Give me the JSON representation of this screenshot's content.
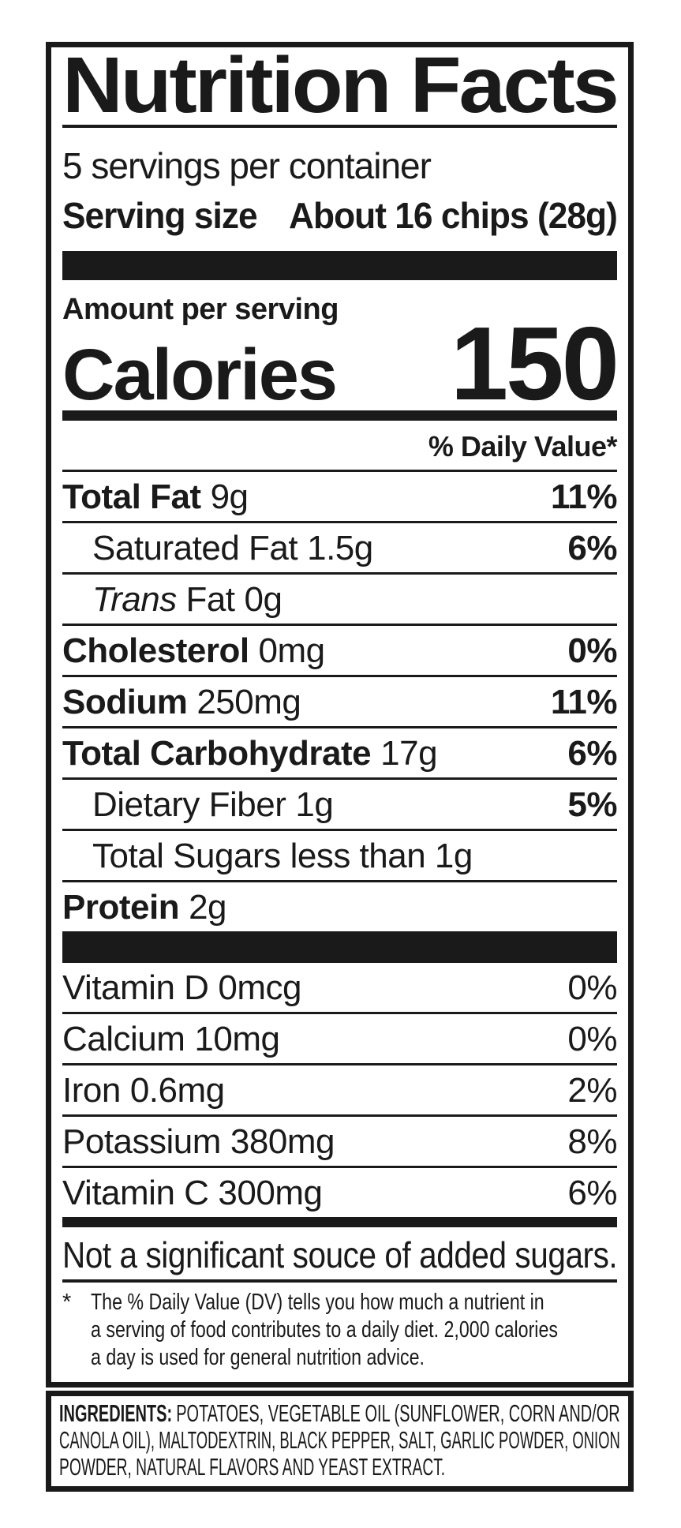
{
  "colors": {
    "text": "#1a1a1a",
    "background": "#ffffff",
    "separator": "#1a1a1a"
  },
  "label": {
    "title": "Nutrition Facts",
    "servings_per_container": "5 servings per container",
    "serving_size": {
      "label": "Serving size",
      "value": "About 16 chips (28g)"
    },
    "amount_per_serving": "Amount per serving",
    "calories": {
      "label": "Calories",
      "value": "150"
    },
    "daily_value_header": "% Daily Value*",
    "nutrients": [
      {
        "name": "Total Fat",
        "amount": "9g",
        "dv": "11%"
      },
      {
        "name": "Saturated Fat",
        "amount": "1.5g",
        "dv": "6%"
      },
      {
        "name_italic": "Trans",
        "name": "Fat",
        "amount": "0g",
        "dv": ""
      },
      {
        "name": "Cholesterol",
        "amount": "0mg",
        "dv": "0%"
      },
      {
        "name": "Sodium",
        "amount": "250mg",
        "dv": "11%"
      },
      {
        "name": "Total Carbohydrate",
        "amount": "17g",
        "dv": "6%"
      },
      {
        "name": "Dietary Fiber",
        "amount": "1g",
        "dv": "5%"
      },
      {
        "name": "Total Sugars",
        "amount": "less than 1g",
        "dv": ""
      },
      {
        "name": "Protein",
        "amount": "2g",
        "dv": ""
      }
    ],
    "micronutrients": [
      {
        "name": "Vitamin D",
        "amount": "0mcg",
        "dv": "0%"
      },
      {
        "name": "Calcium",
        "amount": "10mg",
        "dv": "0%"
      },
      {
        "name": "Iron",
        "amount": "0.6mg",
        "dv": "2%"
      },
      {
        "name": "Potassium",
        "amount": "380mg",
        "dv": "8%"
      },
      {
        "name": "Vitamin C",
        "amount": "300mg",
        "dv": "6%"
      }
    ],
    "added_sugars_note": "Not a significant souce of added sugars.",
    "footnote": {
      "symbol": "*",
      "lines": [
        "The % Daily Value (DV) tells you how much a nutrient in",
        "a serving of food contributes to a daily diet. 2,000 calories",
        "a day is used for general nutrition advice."
      ]
    },
    "ingredients": {
      "heading": "INGREDIENTS:",
      "lines": [
        "POTATOES, VEGETABLE OIL (SUNFLOWER, CORN AND/OR",
        "CANOLA OIL), MALTODEXTRIN, BLACK PEPPER, SALT, GARLIC POWDER, ONION",
        "POWDER, NATURAL FLAVORS AND YEAST EXTRACT."
      ]
    }
  }
}
